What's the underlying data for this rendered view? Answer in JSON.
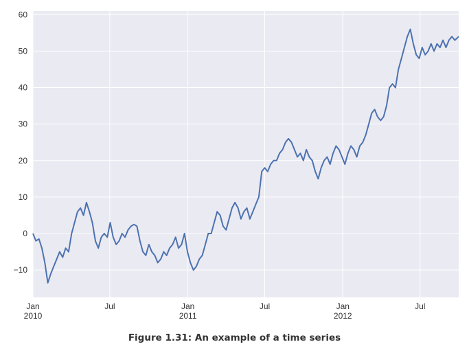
{
  "chart_data": {
    "type": "line",
    "title": "",
    "xlabel": "",
    "ylabel": "",
    "xlim": [
      "2010-01-01",
      "2012-09-30"
    ],
    "ylim": [
      -17.5,
      61
    ],
    "grid": true,
    "colors": {
      "plot_background": "#eaeaf2",
      "grid": "#ffffff",
      "line": "#4c72b0"
    },
    "y_ticks": [
      -10,
      0,
      10,
      20,
      30,
      40,
      50,
      60
    ],
    "x_ticks": [
      {
        "date": "2010-01-01",
        "label": "Jan",
        "sublabel": "2010"
      },
      {
        "date": "2010-07-01",
        "label": "Jul",
        "sublabel": ""
      },
      {
        "date": "2011-01-01",
        "label": "Jan",
        "sublabel": "2011"
      },
      {
        "date": "2011-07-01",
        "label": "Jul",
        "sublabel": ""
      },
      {
        "date": "2012-01-01",
        "label": "Jan",
        "sublabel": "2012"
      },
      {
        "date": "2012-07-01",
        "label": "Jul",
        "sublabel": ""
      }
    ],
    "series": [
      {
        "name": "",
        "points": [
          [
            "2010-01-01",
            0
          ],
          [
            "2010-01-08",
            -2
          ],
          [
            "2010-01-15",
            -1.5
          ],
          [
            "2010-01-22",
            -4
          ],
          [
            "2010-01-29",
            -8
          ],
          [
            "2010-02-05",
            -13.5
          ],
          [
            "2010-02-12",
            -11
          ],
          [
            "2010-02-19",
            -9
          ],
          [
            "2010-02-26",
            -7
          ],
          [
            "2010-03-05",
            -5
          ],
          [
            "2010-03-12",
            -6.5
          ],
          [
            "2010-03-19",
            -4
          ],
          [
            "2010-03-26",
            -5
          ],
          [
            "2010-04-02",
            0
          ],
          [
            "2010-04-09",
            3
          ],
          [
            "2010-04-16",
            6
          ],
          [
            "2010-04-23",
            7
          ],
          [
            "2010-04-30",
            5
          ],
          [
            "2010-05-07",
            8.5
          ],
          [
            "2010-05-14",
            6
          ],
          [
            "2010-05-21",
            3
          ],
          [
            "2010-05-28",
            -2
          ],
          [
            "2010-06-04",
            -4
          ],
          [
            "2010-06-11",
            -1
          ],
          [
            "2010-06-18",
            0
          ],
          [
            "2010-06-25",
            -1
          ],
          [
            "2010-07-02",
            3
          ],
          [
            "2010-07-09",
            -1
          ],
          [
            "2010-07-16",
            -3
          ],
          [
            "2010-07-23",
            -2
          ],
          [
            "2010-07-30",
            0
          ],
          [
            "2010-08-06",
            -1
          ],
          [
            "2010-08-13",
            1
          ],
          [
            "2010-08-20",
            2
          ],
          [
            "2010-08-27",
            2.5
          ],
          [
            "2010-09-03",
            2
          ],
          [
            "2010-09-10",
            -2
          ],
          [
            "2010-09-17",
            -5
          ],
          [
            "2010-09-24",
            -6
          ],
          [
            "2010-10-01",
            -3
          ],
          [
            "2010-10-08",
            -5
          ],
          [
            "2010-10-15",
            -6
          ],
          [
            "2010-10-22",
            -8
          ],
          [
            "2010-10-29",
            -7
          ],
          [
            "2010-11-05",
            -5
          ],
          [
            "2010-11-12",
            -6
          ],
          [
            "2010-11-19",
            -4
          ],
          [
            "2010-11-26",
            -3
          ],
          [
            "2010-12-03",
            -1
          ],
          [
            "2010-12-10",
            -4
          ],
          [
            "2010-12-17",
            -3
          ],
          [
            "2010-12-24",
            0
          ],
          [
            "2010-12-31",
            -5
          ],
          [
            "2011-01-07",
            -8
          ],
          [
            "2011-01-14",
            -10
          ],
          [
            "2011-01-21",
            -9
          ],
          [
            "2011-01-28",
            -7
          ],
          [
            "2011-02-04",
            -6
          ],
          [
            "2011-02-11",
            -3
          ],
          [
            "2011-02-18",
            0
          ],
          [
            "2011-02-25",
            0
          ],
          [
            "2011-03-04",
            3
          ],
          [
            "2011-03-11",
            6
          ],
          [
            "2011-03-18",
            5
          ],
          [
            "2011-03-25",
            2
          ],
          [
            "2011-04-01",
            1
          ],
          [
            "2011-04-08",
            4
          ],
          [
            "2011-04-15",
            7
          ],
          [
            "2011-04-22",
            8.5
          ],
          [
            "2011-04-29",
            7
          ],
          [
            "2011-05-06",
            4
          ],
          [
            "2011-05-13",
            6
          ],
          [
            "2011-05-20",
            7
          ],
          [
            "2011-05-27",
            4
          ],
          [
            "2011-06-03",
            6
          ],
          [
            "2011-06-10",
            8
          ],
          [
            "2011-06-17",
            10
          ],
          [
            "2011-06-24",
            17
          ],
          [
            "2011-07-01",
            18
          ],
          [
            "2011-07-08",
            17
          ],
          [
            "2011-07-15",
            19
          ],
          [
            "2011-07-22",
            20
          ],
          [
            "2011-07-29",
            20
          ],
          [
            "2011-08-05",
            22
          ],
          [
            "2011-08-12",
            23
          ],
          [
            "2011-08-19",
            25
          ],
          [
            "2011-08-26",
            26
          ],
          [
            "2011-09-02",
            25
          ],
          [
            "2011-09-09",
            23
          ],
          [
            "2011-09-16",
            21
          ],
          [
            "2011-09-23",
            22
          ],
          [
            "2011-09-30",
            20
          ],
          [
            "2011-10-07",
            23
          ],
          [
            "2011-10-14",
            21
          ],
          [
            "2011-10-21",
            20
          ],
          [
            "2011-10-28",
            17
          ],
          [
            "2011-11-04",
            15
          ],
          [
            "2011-11-11",
            18
          ],
          [
            "2011-11-18",
            20
          ],
          [
            "2011-11-25",
            21
          ],
          [
            "2011-12-02",
            19
          ],
          [
            "2011-12-09",
            22
          ],
          [
            "2011-12-16",
            24
          ],
          [
            "2011-12-23",
            23
          ],
          [
            "2011-12-30",
            21
          ],
          [
            "2012-01-06",
            19
          ],
          [
            "2012-01-13",
            22
          ],
          [
            "2012-01-20",
            24
          ],
          [
            "2012-01-27",
            23
          ],
          [
            "2012-02-03",
            21
          ],
          [
            "2012-02-10",
            24
          ],
          [
            "2012-02-17",
            25
          ],
          [
            "2012-02-24",
            27
          ],
          [
            "2012-03-02",
            30
          ],
          [
            "2012-03-09",
            33
          ],
          [
            "2012-03-16",
            34
          ],
          [
            "2012-03-23",
            32
          ],
          [
            "2012-03-30",
            31
          ],
          [
            "2012-04-06",
            32
          ],
          [
            "2012-04-13",
            35
          ],
          [
            "2012-04-20",
            40
          ],
          [
            "2012-04-27",
            41
          ],
          [
            "2012-05-04",
            40
          ],
          [
            "2012-05-11",
            45
          ],
          [
            "2012-05-18",
            48
          ],
          [
            "2012-05-25",
            51
          ],
          [
            "2012-06-01",
            54
          ],
          [
            "2012-06-08",
            56
          ],
          [
            "2012-06-15",
            52
          ],
          [
            "2012-06-22",
            49
          ],
          [
            "2012-06-29",
            48
          ],
          [
            "2012-07-06",
            51
          ],
          [
            "2012-07-13",
            49
          ],
          [
            "2012-07-20",
            50
          ],
          [
            "2012-07-27",
            52
          ],
          [
            "2012-08-03",
            50
          ],
          [
            "2012-08-10",
            52
          ],
          [
            "2012-08-17",
            51
          ],
          [
            "2012-08-24",
            53
          ],
          [
            "2012-08-31",
            51
          ],
          [
            "2012-09-07",
            53
          ],
          [
            "2012-09-14",
            54
          ],
          [
            "2012-09-21",
            53
          ],
          [
            "2012-09-30",
            54
          ]
        ]
      }
    ]
  },
  "caption": "Figure 1.31: An example of a time series"
}
